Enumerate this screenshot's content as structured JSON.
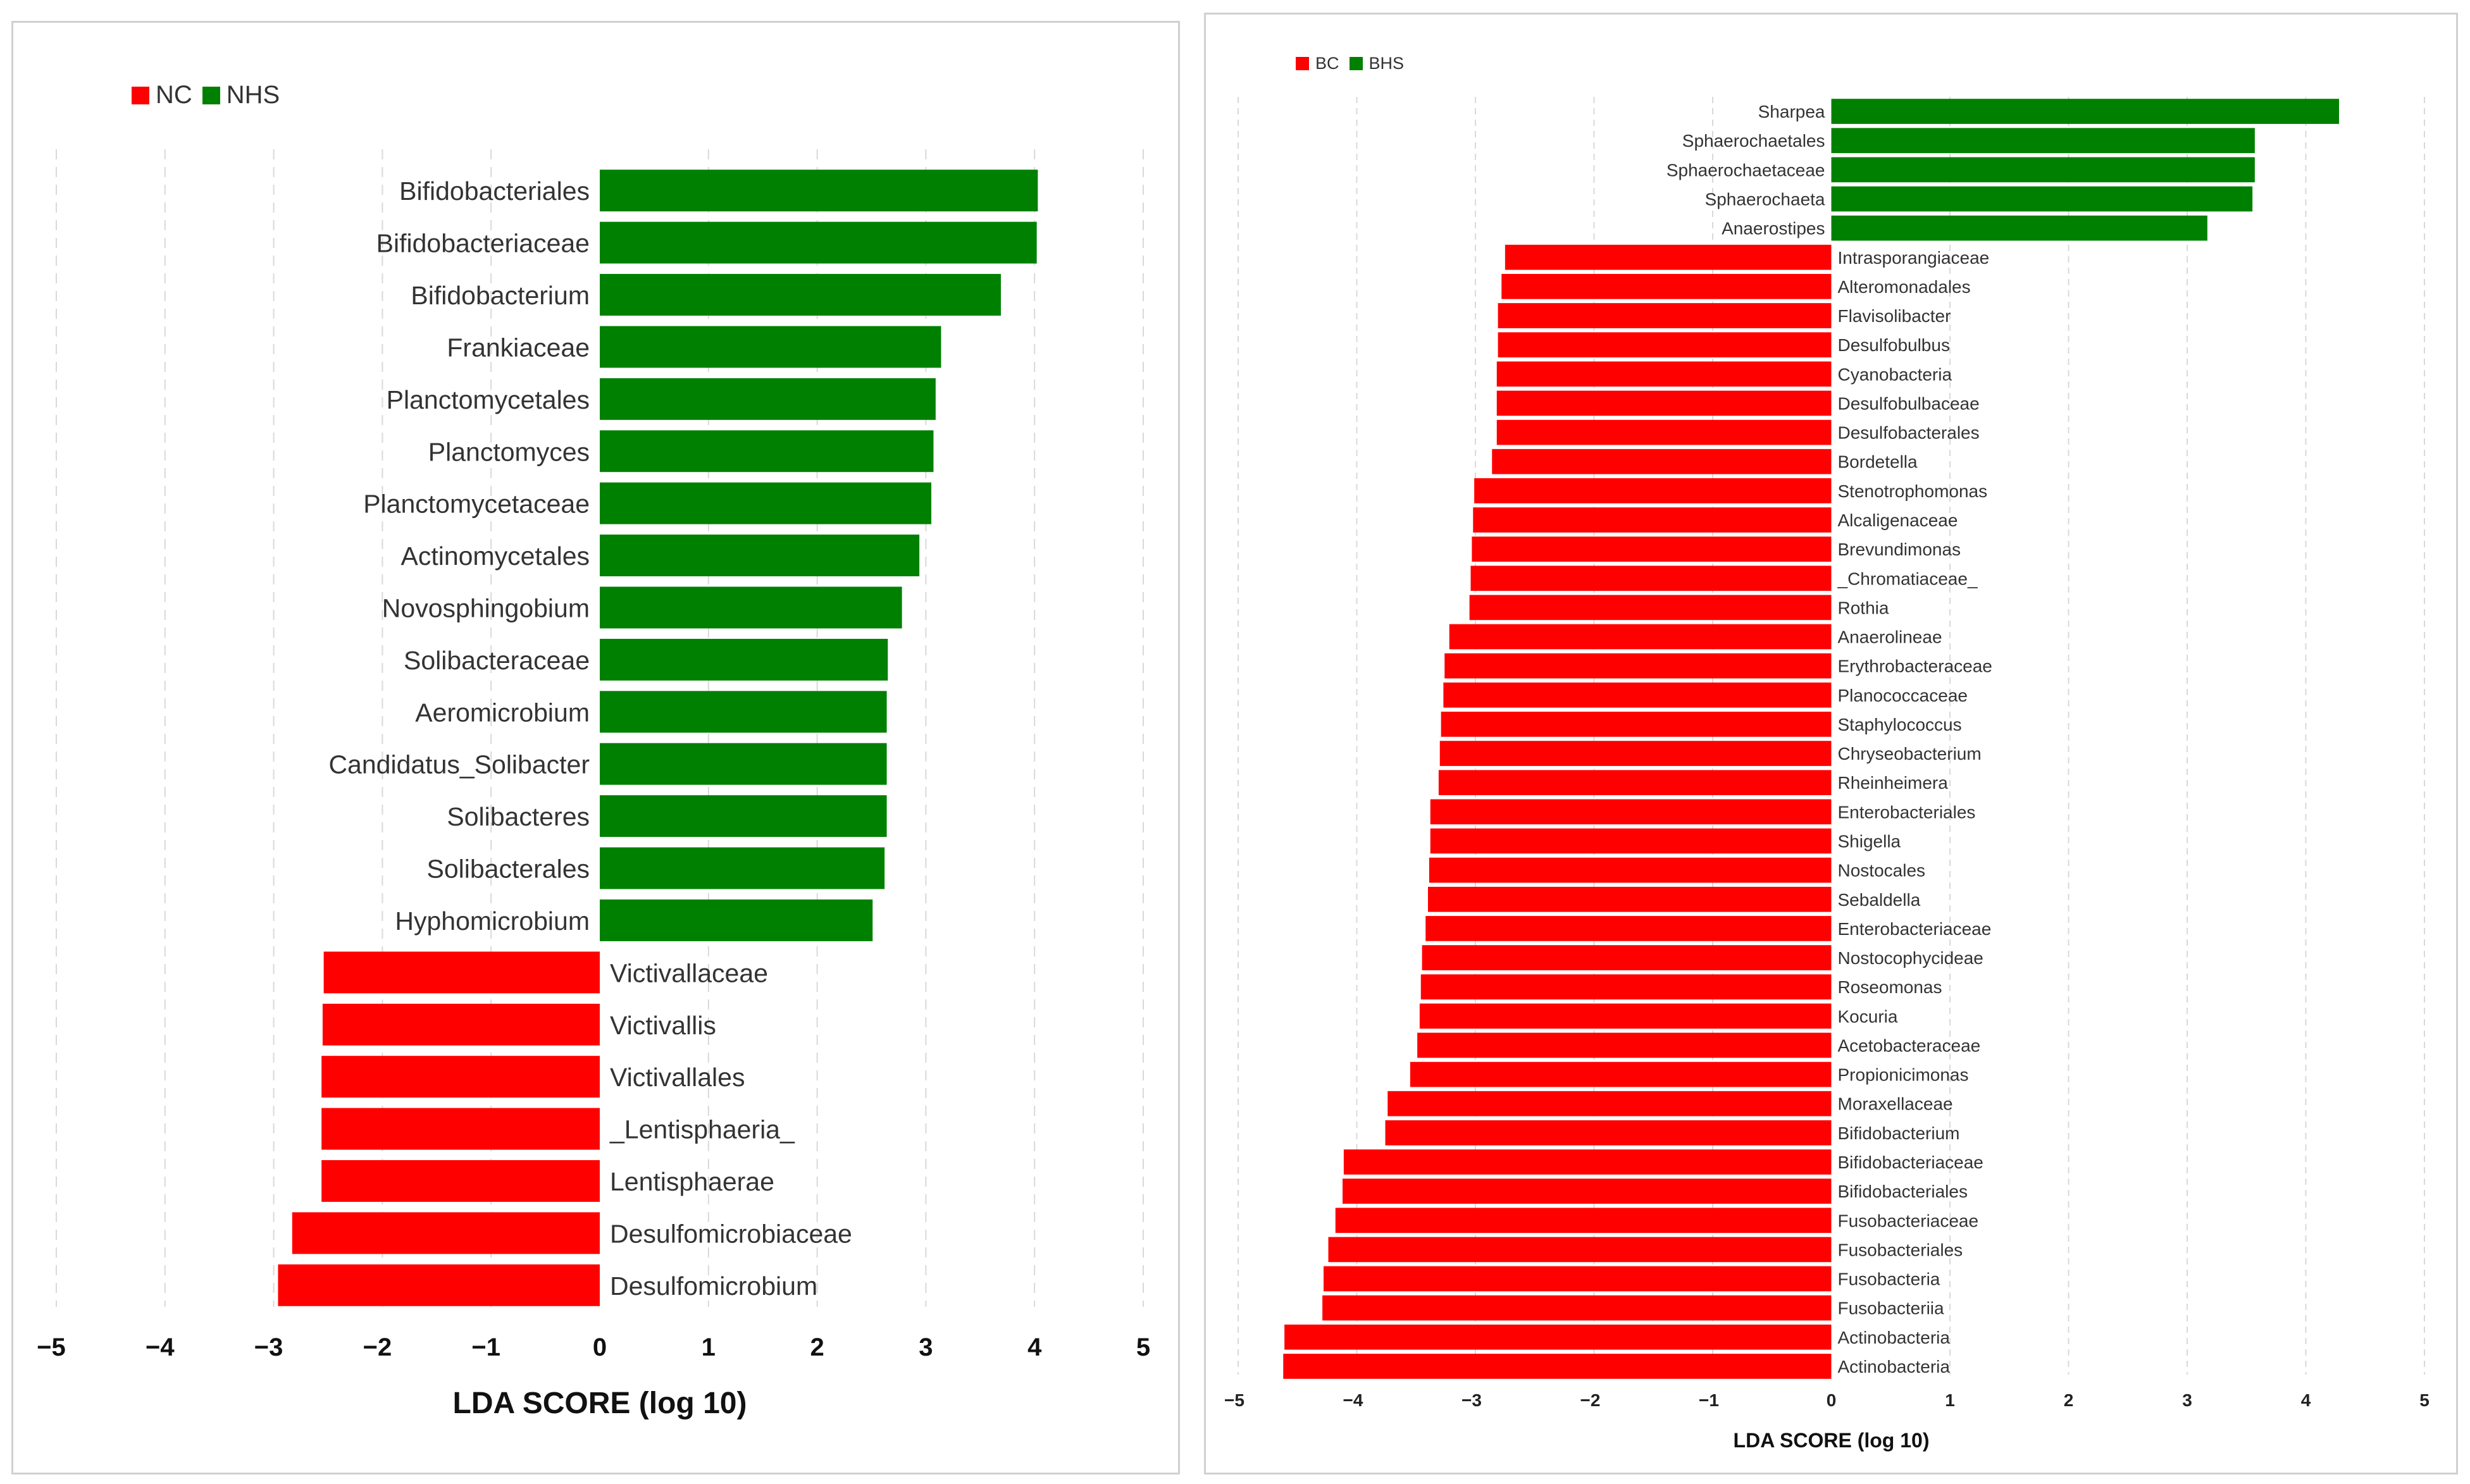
{
  "chart_data": [
    {
      "type": "bar",
      "orientation": "horizontal",
      "xlabel": "LDA SCORE (log 10)",
      "xlim": [
        -5,
        5
      ],
      "xticks": [
        -5,
        -4,
        -3,
        -2,
        -1,
        0,
        1,
        2,
        3,
        4,
        5
      ],
      "grid": true,
      "legend_position": "top-left",
      "legend": [
        {
          "name": "NC",
          "color": "#ff0000"
        },
        {
          "name": "NHS",
          "color": "#008000"
        }
      ],
      "bars": [
        {
          "label": "Bifidobacteriales",
          "value": 4.03,
          "group": "NHS"
        },
        {
          "label": "Bifidobacteriaceae",
          "value": 4.02,
          "group": "NHS"
        },
        {
          "label": "Bifidobacterium",
          "value": 3.69,
          "group": "NHS"
        },
        {
          "label": "Frankiaceae",
          "value": 3.14,
          "group": "NHS"
        },
        {
          "label": "Planctomycetales",
          "value": 3.09,
          "group": "NHS"
        },
        {
          "label": "Planctomyces",
          "value": 3.07,
          "group": "NHS"
        },
        {
          "label": "Planctomycetaceae",
          "value": 3.05,
          "group": "NHS"
        },
        {
          "label": "Actinomycetales",
          "value": 2.94,
          "group": "NHS"
        },
        {
          "label": "Novosphingobium",
          "value": 2.78,
          "group": "NHS"
        },
        {
          "label": "Solibacteraceae",
          "value": 2.65,
          "group": "NHS"
        },
        {
          "label": "Aeromicrobium",
          "value": 2.64,
          "group": "NHS"
        },
        {
          "label": "Candidatus_Solibacter",
          "value": 2.64,
          "group": "NHS"
        },
        {
          "label": "Solibacteres",
          "value": 2.64,
          "group": "NHS"
        },
        {
          "label": "Solibacterales",
          "value": 2.62,
          "group": "NHS"
        },
        {
          "label": "Hyphomicrobium",
          "value": 2.51,
          "group": "NHS"
        },
        {
          "label": "Victivallaceae",
          "value": -2.54,
          "group": "NC"
        },
        {
          "label": "Victivallis",
          "value": -2.55,
          "group": "NC"
        },
        {
          "label": "Victivallales",
          "value": -2.56,
          "group": "NC"
        },
        {
          "label": "_Lentisphaeria_",
          "value": -2.56,
          "group": "NC"
        },
        {
          "label": "Lentisphaerae",
          "value": -2.56,
          "group": "NC"
        },
        {
          "label": "Desulfomicrobiaceae",
          "value": -2.83,
          "group": "NC"
        },
        {
          "label": "Desulfomicrobium",
          "value": -2.96,
          "group": "NC"
        }
      ]
    },
    {
      "type": "bar",
      "orientation": "horizontal",
      "xlabel": "LDA SCORE (log 10)",
      "xlim": [
        -5,
        5
      ],
      "xticks": [
        -5,
        -4,
        -3,
        -2,
        -1,
        0,
        1,
        2,
        3,
        4,
        5
      ],
      "grid": true,
      "legend_position": "top-left",
      "legend": [
        {
          "name": "BC",
          "color": "#ff0000"
        },
        {
          "name": "BHS",
          "color": "#008000"
        }
      ],
      "bars": [
        {
          "label": "Sharpea",
          "value": 4.28,
          "group": "BHS"
        },
        {
          "label": "Sphaerochaetales",
          "value": 3.57,
          "group": "BHS"
        },
        {
          "label": "Sphaerochaetaceae",
          "value": 3.57,
          "group": "BHS"
        },
        {
          "label": "Sphaerochaeta",
          "value": 3.55,
          "group": "BHS"
        },
        {
          "label": "Anaerostipes",
          "value": 3.17,
          "group": "BHS"
        },
        {
          "label": "Intrasporangiaceae",
          "value": -2.75,
          "group": "BC"
        },
        {
          "label": "Alteromonadales",
          "value": -2.78,
          "group": "BC"
        },
        {
          "label": "Flavisolibacter",
          "value": -2.81,
          "group": "BC"
        },
        {
          "label": "Desulfobulbus",
          "value": -2.81,
          "group": "BC"
        },
        {
          "label": "Cyanobacteria",
          "value": -2.82,
          "group": "BC"
        },
        {
          "label": "Desulfobulbaceae",
          "value": -2.82,
          "group": "BC"
        },
        {
          "label": "Desulfobacterales",
          "value": -2.82,
          "group": "BC"
        },
        {
          "label": "Bordetella",
          "value": -2.86,
          "group": "BC"
        },
        {
          "label": "Stenotrophomonas",
          "value": -3.01,
          "group": "BC"
        },
        {
          "label": "Alcaligenaceae",
          "value": -3.02,
          "group": "BC"
        },
        {
          "label": "Brevundimonas",
          "value": -3.03,
          "group": "BC"
        },
        {
          "label": "_Chromatiaceae_",
          "value": -3.04,
          "group": "BC"
        },
        {
          "label": "Rothia",
          "value": -3.05,
          "group": "BC"
        },
        {
          "label": "Anaerolineae",
          "value": -3.22,
          "group": "BC"
        },
        {
          "label": "Erythrobacteraceae",
          "value": -3.26,
          "group": "BC"
        },
        {
          "label": "Planococcaceae",
          "value": -3.27,
          "group": "BC"
        },
        {
          "label": "Staphylococcus",
          "value": -3.29,
          "group": "BC"
        },
        {
          "label": "Chryseobacterium",
          "value": -3.3,
          "group": "BC"
        },
        {
          "label": "Rheinheimera",
          "value": -3.31,
          "group": "BC"
        },
        {
          "label": "Enterobacteriales",
          "value": -3.38,
          "group": "BC"
        },
        {
          "label": "Shigella",
          "value": -3.38,
          "group": "BC"
        },
        {
          "label": "Nostocales",
          "value": -3.39,
          "group": "BC"
        },
        {
          "label": "Sebaldella",
          "value": -3.4,
          "group": "BC"
        },
        {
          "label": "Enterobacteriaceae",
          "value": -3.42,
          "group": "BC"
        },
        {
          "label": "Nostocophycideae",
          "value": -3.45,
          "group": "BC"
        },
        {
          "label": "Roseomonas",
          "value": -3.46,
          "group": "BC"
        },
        {
          "label": "Kocuria",
          "value": -3.47,
          "group": "BC"
        },
        {
          "label": "Acetobacteraceae",
          "value": -3.49,
          "group": "BC"
        },
        {
          "label": "Propionicimonas",
          "value": -3.55,
          "group": "BC"
        },
        {
          "label": "Moraxellaceae",
          "value": -3.74,
          "group": "BC"
        },
        {
          "label": "Bifidobacterium",
          "value": -3.76,
          "group": "BC"
        },
        {
          "label": "Bifidobacteriaceae",
          "value": -4.11,
          "group": "BC"
        },
        {
          "label": "Bifidobacteriales",
          "value": -4.12,
          "group": "BC"
        },
        {
          "label": "Fusobacteriaceae",
          "value": -4.18,
          "group": "BC"
        },
        {
          "label": "Fusobacteriales",
          "value": -4.24,
          "group": "BC"
        },
        {
          "label": "Fusobacteria",
          "value": -4.28,
          "group": "BC"
        },
        {
          "label": "Fusobacteriia",
          "value": -4.29,
          "group": "BC"
        },
        {
          "label": "Actinobacteria",
          "value": -4.61,
          "group": "BC"
        },
        {
          "label": "Actinobacteria",
          "value": -4.62,
          "group": "BC"
        }
      ]
    }
  ]
}
